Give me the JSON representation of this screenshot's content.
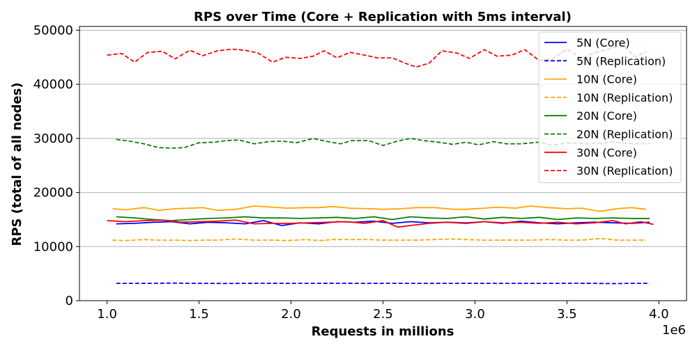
{
  "chart_data": {
    "type": "line",
    "title": "RPS over Time (Core + Replication with 5ms interval)",
    "xlabel": "Requests in millions",
    "ylabel": "RPS (total of all nodes)",
    "x_offset_text": "1e6",
    "xlim": [
      0.85,
      4.15
    ],
    "ylim": [
      0,
      50700
    ],
    "xticks": [
      1.0,
      1.5,
      2.0,
      2.5,
      3.0,
      3.5,
      4.0
    ],
    "xtick_labels": [
      "1.0",
      "1.5",
      "2.0",
      "2.5",
      "3.0",
      "3.5",
      "4.0"
    ],
    "yticks": [
      0,
      10000,
      20000,
      30000,
      40000,
      50000
    ],
    "ytick_labels": [
      "0",
      "10000",
      "20000",
      "30000",
      "40000",
      "50000"
    ],
    "grid": "horizontal",
    "legend_position": "top-right",
    "series": [
      {
        "name": "5N (Core)",
        "color": "#0000ff",
        "dash": "solid",
        "x": [
          1.05,
          1.15,
          1.25,
          1.35,
          1.45,
          1.55,
          1.65,
          1.75,
          1.85,
          1.95,
          2.05,
          2.15,
          2.25,
          2.35,
          2.45,
          2.55,
          2.65,
          2.75,
          2.85,
          2.95,
          3.05,
          3.15,
          3.25,
          3.35,
          3.45,
          3.55,
          3.65,
          3.75,
          3.85,
          3.95
        ],
        "y": [
          14200,
          14300,
          14500,
          14600,
          14200,
          14500,
          14400,
          14200,
          14800,
          13900,
          14400,
          14200,
          14600,
          14500,
          14700,
          14300,
          14600,
          14400,
          14500,
          14300,
          14600,
          14300,
          14700,
          14400,
          14200,
          14400,
          14500,
          14400,
          14300,
          14500
        ]
      },
      {
        "name": "5N (Replication)",
        "color": "#0000ff",
        "dash": "dashed",
        "x": [
          1.05,
          1.15,
          1.25,
          1.35,
          1.45,
          1.55,
          1.65,
          1.75,
          1.85,
          1.95,
          2.05,
          2.15,
          2.25,
          2.35,
          2.45,
          2.55,
          2.65,
          2.75,
          2.85,
          2.95,
          3.05,
          3.15,
          3.25,
          3.35,
          3.45,
          3.55,
          3.65,
          3.75,
          3.85,
          3.95
        ],
        "y": [
          3200,
          3200,
          3200,
          3250,
          3200,
          3200,
          3180,
          3200,
          3220,
          3200,
          3200,
          3200,
          3220,
          3200,
          3210,
          3200,
          3200,
          3200,
          3210,
          3200,
          3200,
          3200,
          3210,
          3200,
          3200,
          3220,
          3200,
          3150,
          3200,
          3200
        ]
      },
      {
        "name": "10N (Core)",
        "color": "#ffa500",
        "dash": "solid",
        "x": [
          1.03,
          1.1,
          1.2,
          1.28,
          1.37,
          1.45,
          1.52,
          1.6,
          1.7,
          1.8,
          1.9,
          1.98,
          2.08,
          2.15,
          2.23,
          2.32,
          2.42,
          2.5,
          2.6,
          2.68,
          2.78,
          2.88,
          2.95,
          3.05,
          3.12,
          3.22,
          3.3,
          3.4,
          3.5,
          3.58,
          3.68,
          3.77,
          3.85,
          3.93
        ],
        "y": [
          17000,
          16800,
          17200,
          16700,
          17000,
          17100,
          17200,
          16700,
          16900,
          17500,
          17300,
          17100,
          17200,
          17200,
          17400,
          17100,
          17000,
          16900,
          17000,
          17200,
          17200,
          16900,
          16900,
          17100,
          17300,
          17100,
          17500,
          17200,
          17000,
          17100,
          16500,
          17000,
          17200,
          16900
        ]
      },
      {
        "name": "10N (Replication)",
        "color": "#ffa500",
        "dash": "dashed",
        "x": [
          1.03,
          1.1,
          1.2,
          1.28,
          1.37,
          1.45,
          1.52,
          1.6,
          1.7,
          1.8,
          1.9,
          1.98,
          2.08,
          2.15,
          2.23,
          2.32,
          2.42,
          2.5,
          2.6,
          2.68,
          2.78,
          2.88,
          2.95,
          3.05,
          3.12,
          3.22,
          3.3,
          3.4,
          3.5,
          3.58,
          3.68,
          3.77,
          3.85,
          3.93
        ],
        "y": [
          11200,
          11100,
          11300,
          11200,
          11200,
          11100,
          11200,
          11200,
          11400,
          11200,
          11200,
          11100,
          11300,
          11100,
          11300,
          11300,
          11300,
          11200,
          11200,
          11200,
          11300,
          11400,
          11300,
          11200,
          11200,
          11200,
          11200,
          11300,
          11200,
          11200,
          11500,
          11200,
          11200,
          11200
        ]
      },
      {
        "name": "20N (Core)",
        "color": "#008000",
        "dash": "solid",
        "x": [
          1.05,
          1.15,
          1.25,
          1.35,
          1.45,
          1.55,
          1.65,
          1.75,
          1.85,
          1.95,
          2.05,
          2.15,
          2.25,
          2.35,
          2.45,
          2.55,
          2.65,
          2.75,
          2.85,
          2.95,
          3.05,
          3.15,
          3.25,
          3.35,
          3.45,
          3.55,
          3.65,
          3.75,
          3.85,
          3.95
        ],
        "y": [
          15500,
          15300,
          15000,
          14800,
          15000,
          15200,
          15300,
          15500,
          15300,
          15300,
          15200,
          15300,
          15400,
          15200,
          15500,
          15000,
          15500,
          15300,
          15200,
          15500,
          15100,
          15400,
          15200,
          15400,
          15000,
          15300,
          15200,
          15300,
          15200,
          15200
        ]
      },
      {
        "name": "20N (Replication)",
        "color": "#008000",
        "dash": "dashed",
        "x": [
          1.05,
          1.12,
          1.2,
          1.28,
          1.35,
          1.42,
          1.5,
          1.58,
          1.65,
          1.72,
          1.8,
          1.88,
          1.95,
          2.03,
          2.12,
          2.2,
          2.27,
          2.33,
          2.42,
          2.5,
          2.58,
          2.65,
          2.72,
          2.8,
          2.88,
          2.95,
          3.02,
          3.1,
          3.17,
          3.25,
          3.35,
          3.42,
          3.5,
          3.6,
          3.68,
          3.75,
          3.82,
          3.9,
          3.95
        ],
        "y": [
          29800,
          29500,
          29000,
          28300,
          28200,
          28300,
          29200,
          29300,
          29600,
          29700,
          29000,
          29400,
          29500,
          29200,
          30000,
          29400,
          29000,
          29600,
          29600,
          28700,
          29500,
          30000,
          29600,
          29300,
          28900,
          29300,
          28800,
          29400,
          29000,
          29000,
          29300,
          28700,
          29200,
          29000,
          29100,
          29400,
          29100,
          29000,
          29100
        ]
      },
      {
        "name": "30N (Core)",
        "color": "#ff0000",
        "dash": "solid",
        "x": [
          1.0,
          1.1,
          1.2,
          1.3,
          1.4,
          1.5,
          1.6,
          1.7,
          1.8,
          1.9,
          2.0,
          2.1,
          2.2,
          2.3,
          2.4,
          2.5,
          2.58,
          2.65,
          2.75,
          2.85,
          2.95,
          3.05,
          3.15,
          3.25,
          3.35,
          3.45,
          3.55,
          3.65,
          3.75,
          3.82,
          3.9,
          3.97
        ],
        "y": [
          14800,
          14600,
          14800,
          14900,
          14500,
          14600,
          14700,
          14900,
          14200,
          14300,
          14300,
          14400,
          14500,
          14600,
          14300,
          14800,
          13600,
          13900,
          14300,
          14500,
          14400,
          14600,
          14400,
          14500,
          14300,
          14500,
          14200,
          14400,
          14800,
          14200,
          14600,
          14100
        ]
      },
      {
        "name": "30N (Replication)",
        "color": "#ff0000",
        "dash": "dashed",
        "x": [
          1.0,
          1.08,
          1.15,
          1.22,
          1.3,
          1.37,
          1.45,
          1.52,
          1.6,
          1.68,
          1.75,
          1.82,
          1.9,
          1.97,
          2.05,
          2.12,
          2.18,
          2.25,
          2.32,
          2.4,
          2.47,
          2.55,
          2.62,
          2.68,
          2.75,
          2.82,
          2.9,
          2.97,
          3.05,
          3.12,
          3.2,
          3.27,
          3.35,
          3.42,
          3.5,
          3.58,
          3.65,
          3.72,
          3.8,
          3.87,
          3.93
        ],
        "y": [
          45400,
          45700,
          44100,
          45900,
          46100,
          44700,
          46300,
          45300,
          46200,
          46500,
          46300,
          45800,
          44100,
          45000,
          44800,
          45200,
          46200,
          44900,
          45900,
          45400,
          44900,
          44900,
          43900,
          43200,
          43900,
          46200,
          45800,
          44800,
          46400,
          45200,
          45400,
          46400,
          44400,
          44700,
          46500,
          44800,
          45900,
          46400,
          47300,
          45100,
          46000
        ]
      }
    ]
  }
}
